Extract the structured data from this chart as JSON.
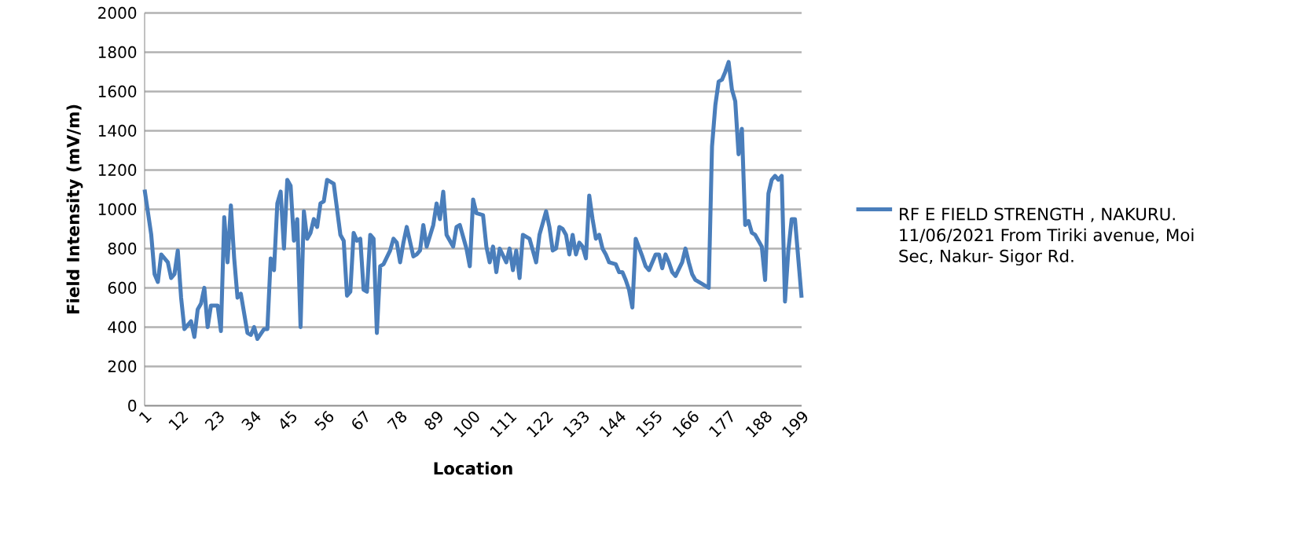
{
  "chart_data": {
    "type": "line",
    "xlabel": "Location",
    "ylabel": "Field Intensity (mV/m)",
    "grid": "y",
    "legend": "right",
    "xlim": [
      1,
      199
    ],
    "ylim": [
      0,
      2000
    ],
    "xticks": [
      1,
      12,
      23,
      34,
      45,
      56,
      67,
      78,
      89,
      100,
      111,
      122,
      133,
      144,
      155,
      166,
      177,
      188,
      199
    ],
    "yticks": [
      0,
      200,
      400,
      600,
      800,
      1000,
      1200,
      1400,
      1600,
      1800,
      2000
    ],
    "series": [
      {
        "name": "RF   E FIELD STRENGTH , NAKURU. 11/06/2021 From Tiriki avenue, Moi Sec, Nakur- Sigor Rd.",
        "color": "#4a7ebb",
        "x": [
          1,
          3,
          4,
          5,
          6,
          8,
          9,
          10,
          11,
          12,
          13,
          15,
          16,
          17,
          18,
          19,
          20,
          21,
          23,
          24,
          25,
          26,
          27,
          28,
          29,
          30,
          31,
          32,
          33,
          34,
          35,
          37,
          38,
          39,
          40,
          41,
          42,
          43,
          44,
          45,
          46,
          47,
          48,
          49,
          50,
          51,
          52,
          53,
          54,
          55,
          56,
          57,
          58,
          60,
          61,
          62,
          63,
          64,
          65,
          66,
          67,
          68,
          69,
          70,
          71,
          72,
          73,
          75,
          76,
          77,
          78,
          79,
          80,
          82,
          83,
          84,
          85,
          86,
          88,
          89,
          90,
          91,
          92,
          94,
          95,
          96,
          98,
          99,
          100,
          101,
          103,
          104,
          105,
          106,
          107,
          108,
          110,
          111,
          112,
          113,
          114,
          115,
          117,
          118,
          119,
          120,
          122,
          123,
          124,
          125,
          126,
          127,
          128,
          129,
          130,
          131,
          132,
          133,
          134,
          135,
          136,
          137,
          138,
          139,
          140,
          141,
          143,
          144,
          145,
          146,
          147,
          148,
          149,
          151,
          152,
          153,
          155,
          156,
          157,
          158,
          159,
          160,
          161,
          163,
          164,
          165,
          166,
          167,
          169,
          171,
          172,
          173,
          174,
          175,
          176,
          177,
          178,
          179,
          180,
          181,
          182,
          183,
          184,
          185,
          187,
          188,
          189,
          190,
          191,
          192,
          193,
          194,
          195,
          196,
          197,
          199
        ],
        "values": [
          1100,
          870,
          670,
          630,
          770,
          730,
          650,
          670,
          790,
          550,
          390,
          430,
          350,
          490,
          520,
          600,
          400,
          510,
          510,
          380,
          960,
          730,
          1020,
          750,
          550,
          570,
          470,
          370,
          360,
          400,
          340,
          390,
          390,
          750,
          690,
          1030,
          1090,
          800,
          1150,
          1120,
          840,
          950,
          400,
          990,
          850,
          880,
          950,
          910,
          1030,
          1040,
          1150,
          1140,
          1130,
          870,
          840,
          560,
          580,
          880,
          840,
          850,
          590,
          580,
          870,
          850,
          370,
          710,
          720,
          790,
          850,
          830,
          730,
          830,
          910,
          760,
          770,
          790,
          920,
          810,
          920,
          1030,
          950,
          1090,
          870,
          810,
          910,
          920,
          800,
          710,
          1050,
          980,
          970,
          810,
          730,
          810,
          680,
          800,
          730,
          800,
          690,
          790,
          650,
          870,
          850,
          790,
          730,
          870,
          990,
          910,
          790,
          800,
          910,
          900,
          870,
          770,
          870,
          770,
          830,
          810,
          750,
          1070,
          950,
          850,
          870,
          800,
          770,
          730,
          720,
          680,
          680,
          640,
          590,
          500,
          850,
          760,
          710,
          690,
          770,
          770,
          700,
          770,
          730,
          680,
          660,
          730,
          800,
          730,
          670,
          640,
          620,
          600,
          1320,
          1530,
          1650,
          1660,
          1700,
          1750,
          1610,
          1550,
          1280,
          1410,
          920,
          940,
          880,
          870,
          810,
          640,
          1080,
          1150,
          1170,
          1150,
          1170,
          530,
          790,
          950,
          950,
          550
        ]
      }
    ]
  }
}
